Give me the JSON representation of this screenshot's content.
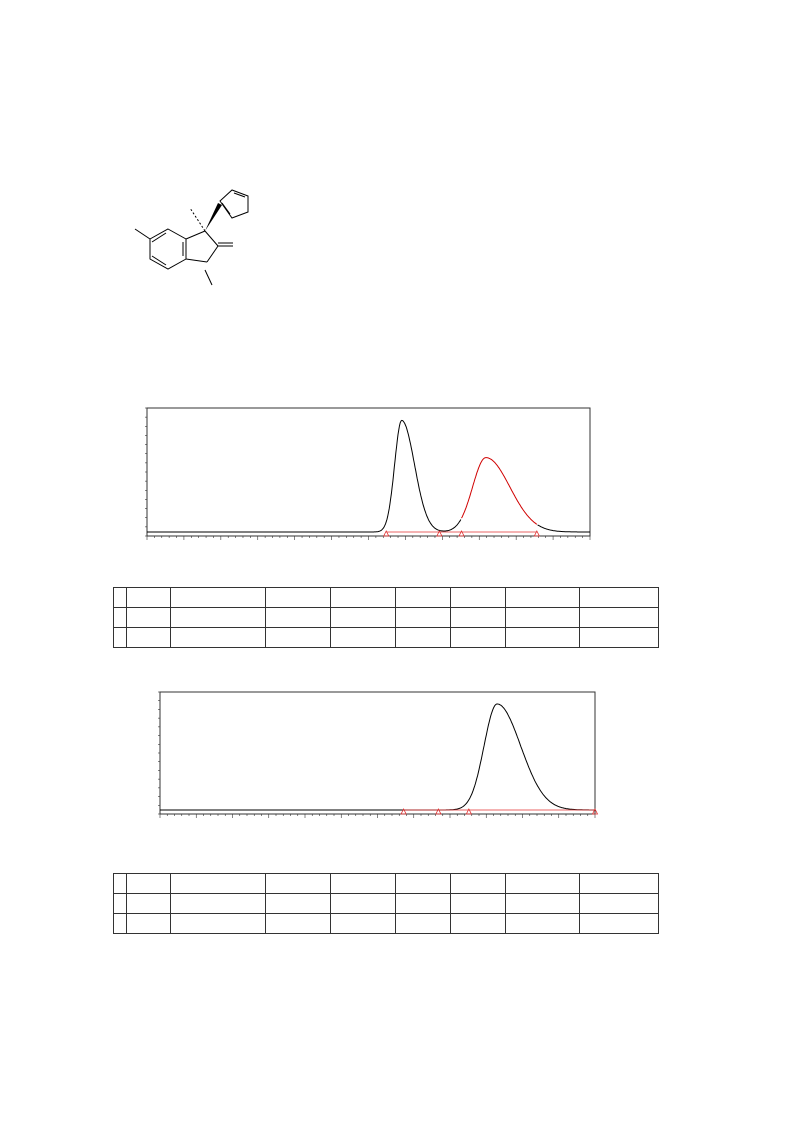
{
  "colors": {
    "trace_primary": "#000000",
    "trace_integrated": "#d00000",
    "baseline_marker": "#e03030",
    "frame": "#333333"
  },
  "chart_data": [
    {
      "type": "line",
      "title": "",
      "xlabel": "",
      "ylabel": "",
      "grid": false,
      "series": [
        {
          "color": "#000000",
          "peaks": [
            {
              "retention_fraction": 0.575,
              "relative_height": 0.93,
              "width": 0.016
            },
            {
              "retention_fraction": 0.765,
              "relative_height": 0.62,
              "width": 0.03
            }
          ]
        }
      ],
      "integration_markers": 4
    },
    {
      "type": "line",
      "title": "",
      "xlabel": "",
      "ylabel": "",
      "grid": false,
      "series": [
        {
          "color": "#000000",
          "peaks": [
            {
              "retention_fraction": 0.775,
              "relative_height": 0.93,
              "width": 0.03
            }
          ]
        }
      ],
      "integration_markers": 4
    }
  ],
  "tables": [
    {
      "rows": 3,
      "columns": 9,
      "cells": []
    },
    {
      "rows": 3,
      "columns": 9,
      "cells": []
    }
  ]
}
